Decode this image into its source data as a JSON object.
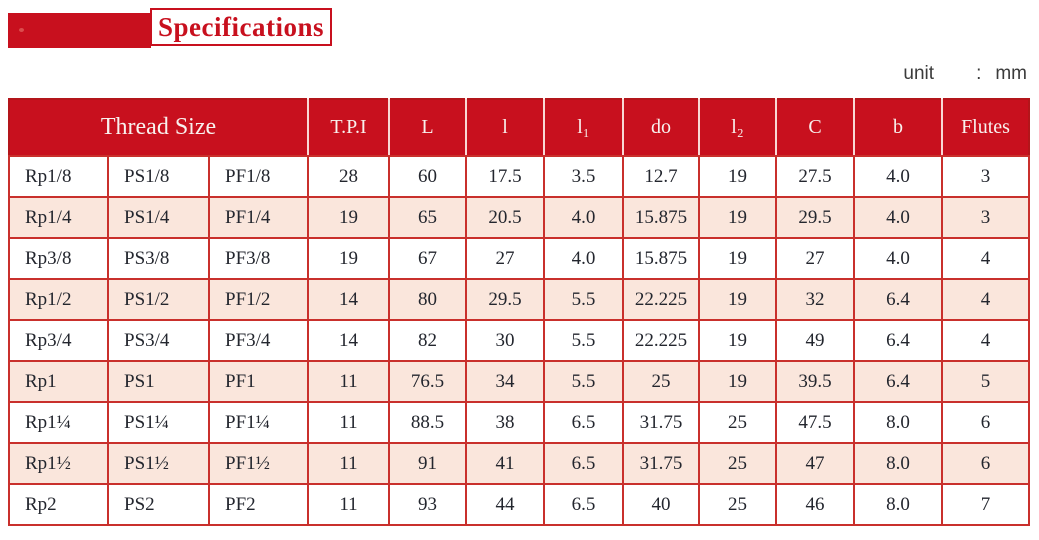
{
  "title": {
    "text": "Specifications"
  },
  "unit_note": {
    "label": "unit",
    "separator": ":",
    "value": "mm"
  },
  "colors": {
    "accent_red": "#c8101e",
    "border_red": "#c9302c",
    "outer_red": "#b3151a",
    "row_pink": "#fae6dc",
    "header_text": "#f8f1ee",
    "cell_text": "#23262e"
  },
  "table": {
    "headers": [
      {
        "label": "Thread Size",
        "colspan": 3
      },
      {
        "label": "T.P.I"
      },
      {
        "label": "L"
      },
      {
        "label": "l"
      },
      {
        "label": "l₁"
      },
      {
        "label": "do"
      },
      {
        "label": "l₂"
      },
      {
        "label": "C"
      },
      {
        "label": "b"
      },
      {
        "label": "Flutes"
      }
    ],
    "rows": [
      [
        "Rp1/8",
        "PS1/8",
        "PF1/8",
        "28",
        "60",
        "17.5",
        "3.5",
        "12.7",
        "19",
        "27.5",
        "4.0",
        "3"
      ],
      [
        "Rp1/4",
        "PS1/4",
        "PF1/4",
        "19",
        "65",
        "20.5",
        "4.0",
        "15.875",
        "19",
        "29.5",
        "4.0",
        "3"
      ],
      [
        "Rp3/8",
        "PS3/8",
        "PF3/8",
        "19",
        "67",
        "27",
        "4.0",
        "15.875",
        "19",
        "27",
        "4.0",
        "4"
      ],
      [
        "Rp1/2",
        "PS1/2",
        "PF1/2",
        "14",
        "80",
        "29.5",
        "5.5",
        "22.225",
        "19",
        "32",
        "6.4",
        "4"
      ],
      [
        "Rp3/4",
        "PS3/4",
        "PF3/4",
        "14",
        "82",
        "30",
        "5.5",
        "22.225",
        "19",
        "49",
        "6.4",
        "4"
      ],
      [
        "Rp1",
        "PS1",
        "PF1",
        "11",
        "76.5",
        "34",
        "5.5",
        "25",
        "19",
        "39.5",
        "6.4",
        "5"
      ],
      [
        "Rp1¼",
        "PS1¼",
        "PF1¼",
        "11",
        "88.5",
        "38",
        "6.5",
        "31.75",
        "25",
        "47.5",
        "8.0",
        "6"
      ],
      [
        "Rp1½",
        "PS1½",
        "PF1½",
        "11",
        "91",
        "41",
        "6.5",
        "31.75",
        "25",
        "47",
        "8.0",
        "6"
      ],
      [
        "Rp2",
        "PS2",
        "PF2",
        "11",
        "93",
        "44",
        "6.5",
        "40",
        "25",
        "46",
        "8.0",
        "7"
      ]
    ]
  }
}
